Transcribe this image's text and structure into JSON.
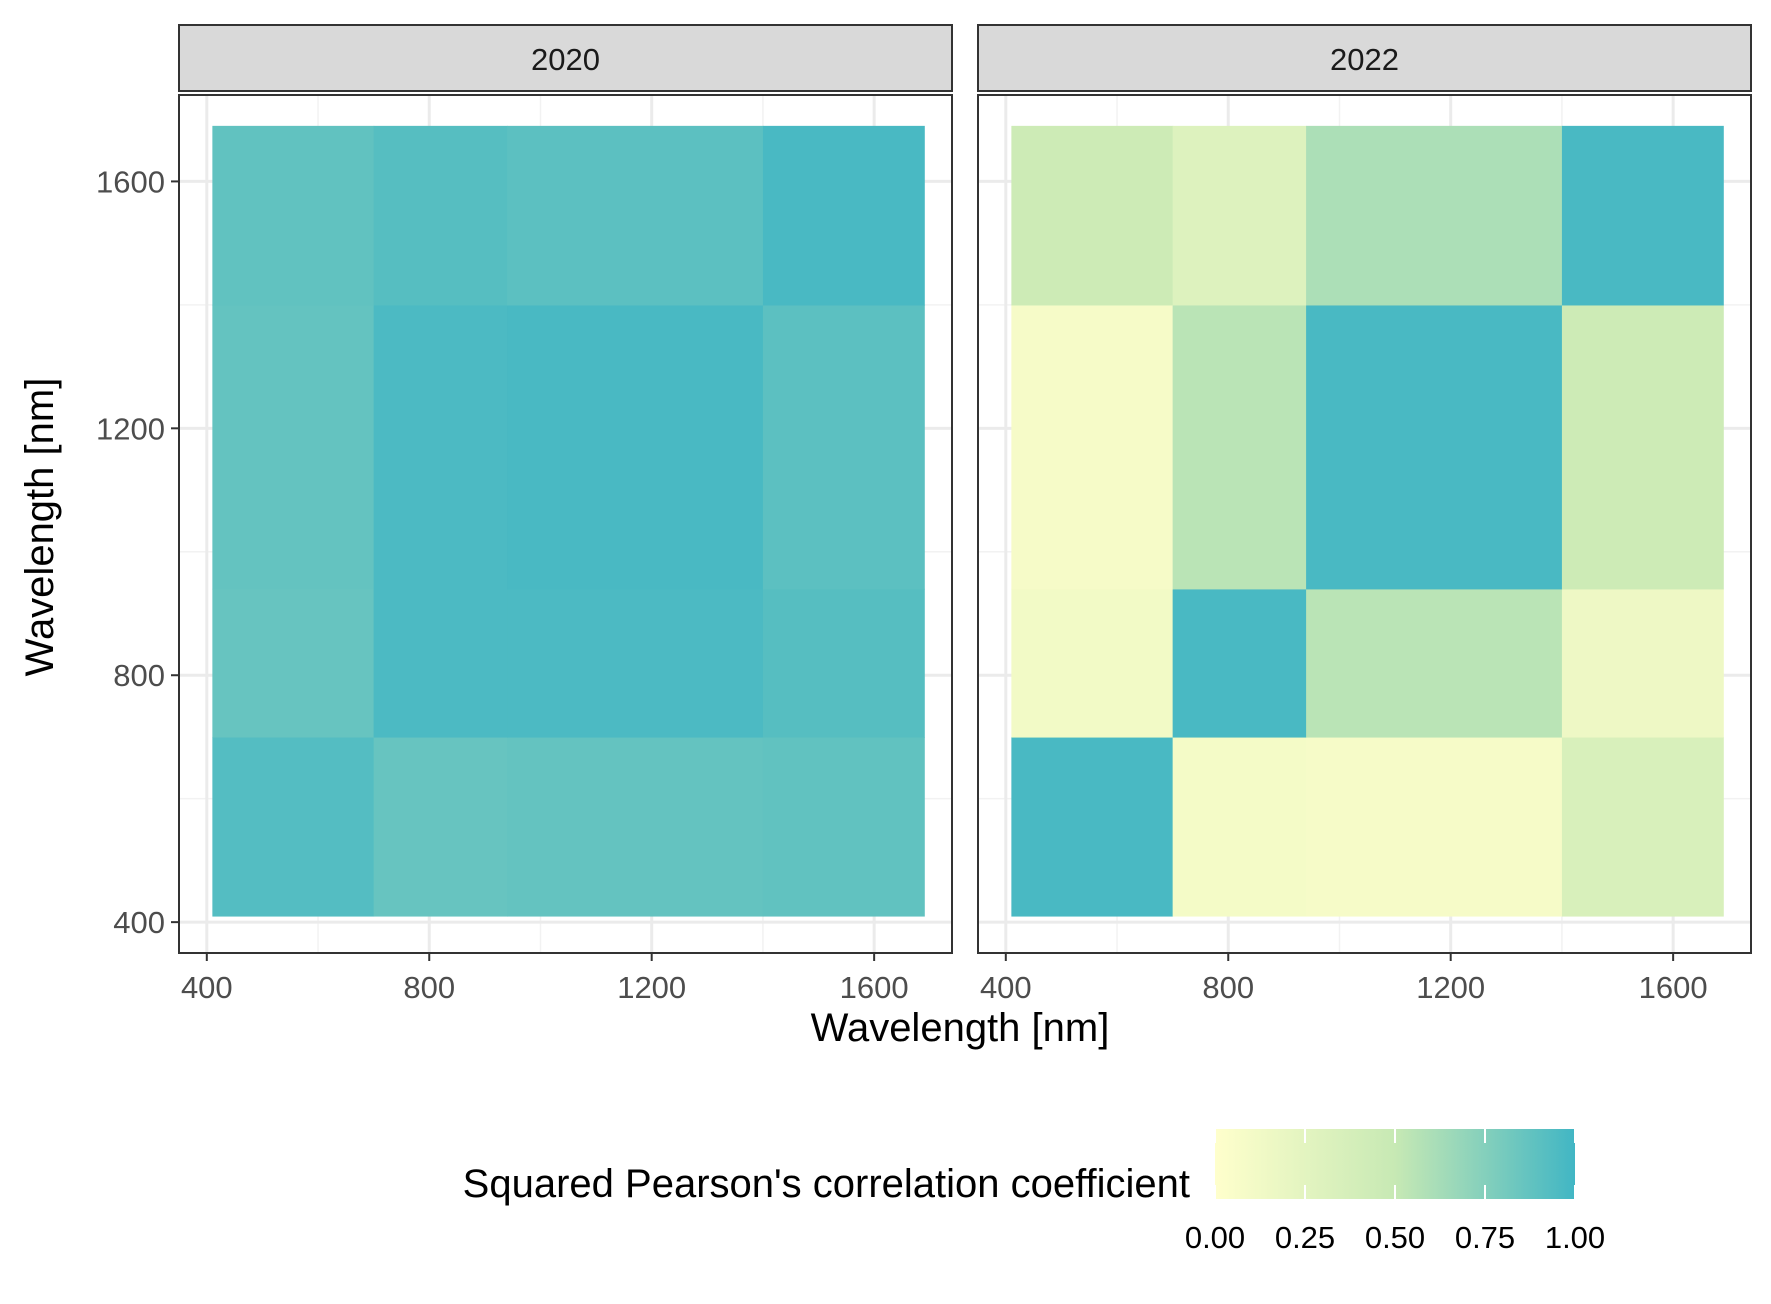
{
  "chart_data": {
    "type": "heatmap",
    "xlabel": "Wavelength [nm]",
    "ylabel": "Wavelength [nm]",
    "xlim": [
      350,
      1740
    ],
    "ylim": [
      350,
      1740
    ],
    "data_extent": [
      410,
      1690
    ],
    "x_ticks": [
      "400",
      "800",
      "1200",
      "1600"
    ],
    "y_ticks": [
      "400",
      "800",
      "1200",
      "1600"
    ],
    "tick_values": [
      400,
      800,
      1200,
      1600
    ],
    "minor_tick_values": [
      600,
      1000,
      1400
    ],
    "grid": true,
    "facets": [
      {
        "label": "2020",
        "bands": [
          410,
          700,
          940,
          1400,
          1690
        ],
        "values": [
          [
            0.93,
            0.86,
            0.87,
            0.88
          ],
          [
            0.86,
            0.96,
            0.96,
            0.92
          ],
          [
            0.87,
            0.96,
            0.97,
            0.9
          ],
          [
            0.88,
            0.92,
            0.9,
            0.97
          ]
        ]
      },
      {
        "label": "2022",
        "bands": [
          410,
          700,
          940,
          1400,
          1690
        ],
        "values": [
          [
            0.97,
            0.1,
            0.08,
            0.35
          ],
          [
            0.12,
            0.97,
            0.55,
            0.15
          ],
          [
            0.08,
            0.55,
            0.97,
            0.45
          ],
          [
            0.45,
            0.3,
            0.6,
            0.97
          ]
        ]
      }
    ],
    "legend": {
      "title": "Squared Pearson's correlation coefficient",
      "position": "bottom",
      "ticks": [
        "0.00",
        "0.25",
        "0.50",
        "0.75",
        "1.00"
      ],
      "tick_values": [
        0,
        0.25,
        0.5,
        0.75,
        1.0
      ],
      "range": [
        0,
        1
      ],
      "colors": [
        "#ffffcc",
        "#c7e9b4",
        "#41b6c4"
      ]
    }
  }
}
